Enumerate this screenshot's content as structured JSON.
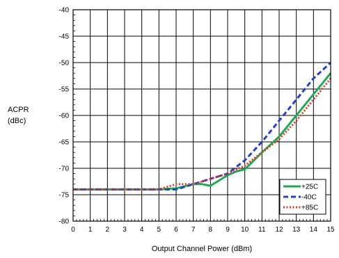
{
  "chart_data": {
    "type": "line",
    "title": "",
    "xlabel": "Output Channel Power (dBm)",
    "ylabel_line1": "ACPR",
    "ylabel_line2": "(dBc)",
    "xlim": [
      0,
      15
    ],
    "ylim": [
      -80,
      -40
    ],
    "x_ticks": [
      0,
      1,
      2,
      3,
      4,
      5,
      6,
      7,
      8,
      9,
      10,
      11,
      12,
      13,
      14,
      15
    ],
    "y_ticks": [
      -40,
      -45,
      -50,
      -55,
      -60,
      -65,
      -70,
      -75,
      -80
    ],
    "grid": true,
    "legend_position": "bottom-right",
    "series": [
      {
        "name": "+25C",
        "color": "#1faa55",
        "style": "solid",
        "x": [
          0,
          1,
          2,
          3,
          4,
          5,
          6,
          7,
          7.5,
          8,
          8.5,
          9,
          9.5,
          10,
          11,
          12,
          13,
          14,
          15
        ],
        "y": [
          -74,
          -74,
          -74,
          -74,
          -74,
          -74,
          -73.8,
          -73,
          -73,
          -73.3,
          -72.3,
          -71.3,
          -70.6,
          -70.2,
          -67,
          -64,
          -60,
          -56,
          -52
        ]
      },
      {
        "name": "-40C",
        "color": "#1f3fd6",
        "style": "dashed",
        "x": [
          0,
          1,
          2,
          3,
          4,
          5,
          5.5,
          6,
          7,
          8,
          9,
          10,
          11,
          12,
          13,
          14,
          15
        ],
        "y": [
          -74,
          -74,
          -74,
          -74,
          -74,
          -74,
          -74,
          -74,
          -73,
          -72,
          -71,
          -68.5,
          -65,
          -61,
          -57,
          -53,
          -50
        ]
      },
      {
        "name": "+85C",
        "color": "#e0392b",
        "style": "dotted",
        "x": [
          0,
          1,
          2,
          3,
          4,
          5,
          6,
          7,
          8,
          9,
          10,
          11,
          12,
          13,
          14,
          15
        ],
        "y": [
          -74,
          -74,
          -74,
          -74,
          -74,
          -74,
          -73,
          -73,
          -72,
          -71,
          -69.5,
          -67,
          -64.5,
          -61,
          -57,
          -53
        ]
      }
    ]
  }
}
